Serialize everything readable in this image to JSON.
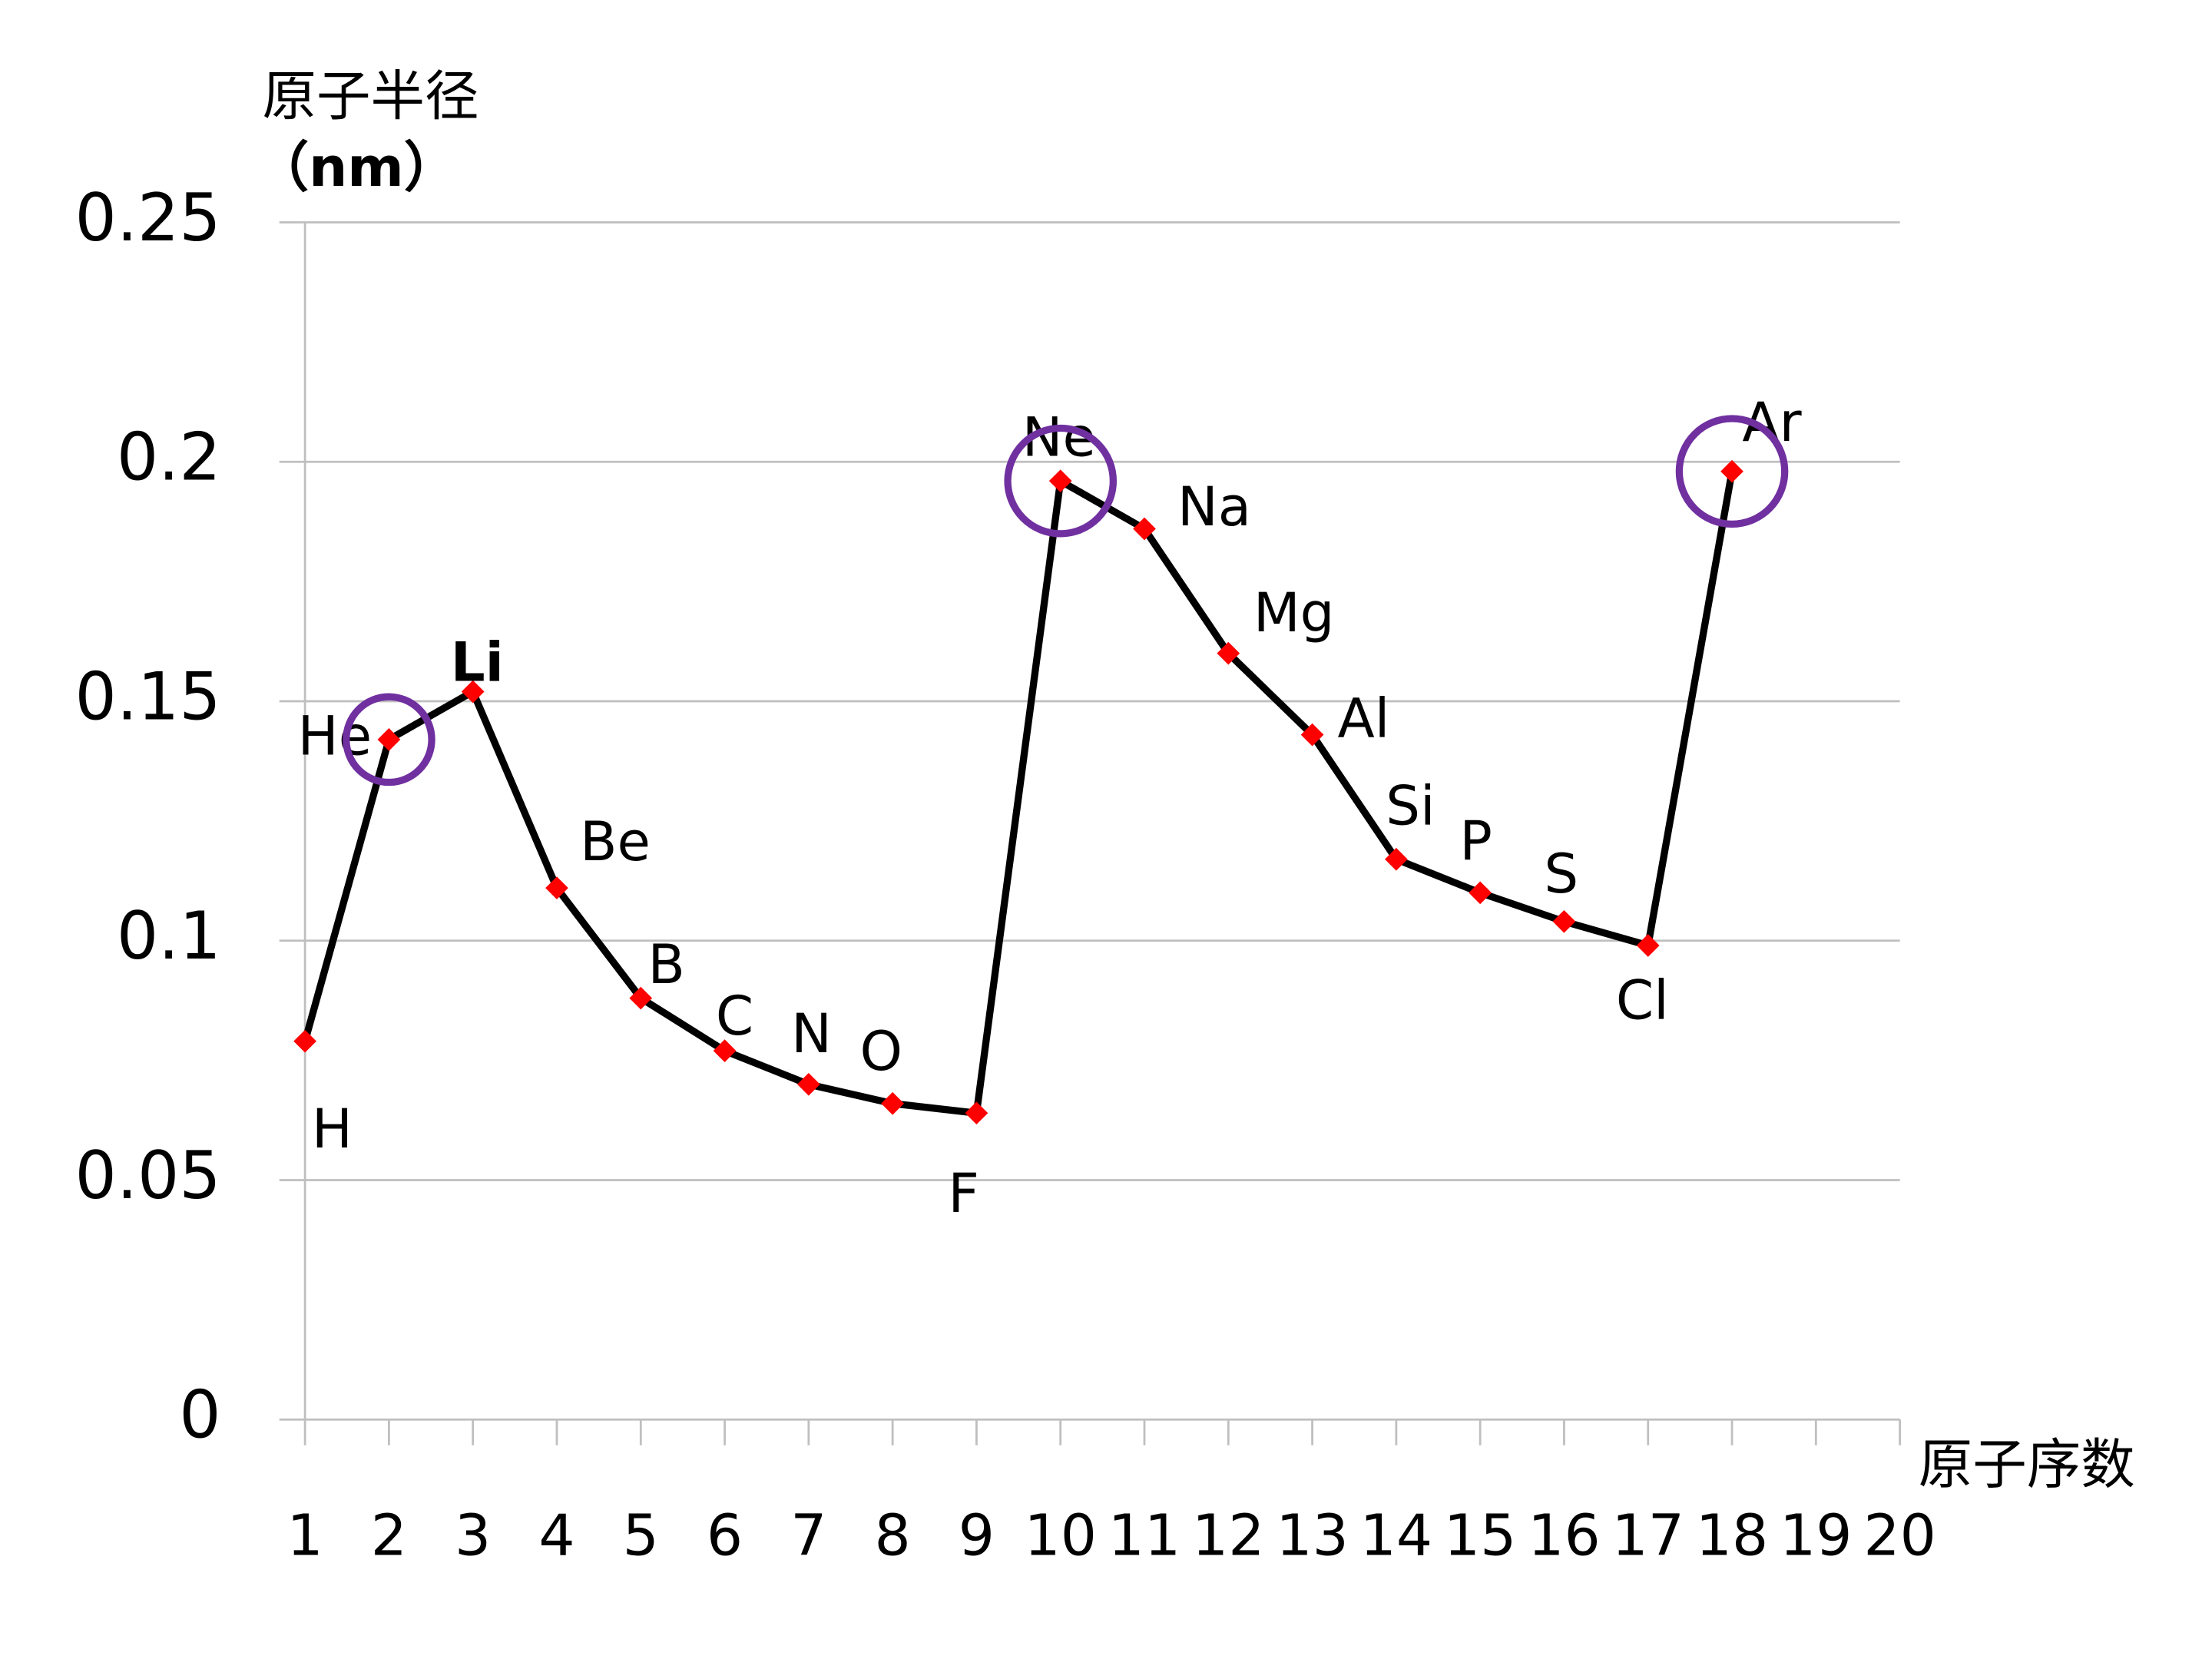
{
  "chart_data": {
    "type": "line",
    "y_label": [
      "原子半径",
      "（nm）"
    ],
    "x_label": "原子序数",
    "x": [
      1,
      2,
      3,
      4,
      5,
      6,
      7,
      8,
      9,
      10,
      11,
      12,
      13,
      14,
      15,
      16,
      17,
      18
    ],
    "series": [
      {
        "color": "#000000",
        "marker_color": "#ff0000",
        "values": [
          0.079,
          0.142,
          0.152,
          0.111,
          0.088,
          0.077,
          0.07,
          0.066,
          0.064,
          0.196,
          0.186,
          0.16,
          0.143,
          0.117,
          0.11,
          0.104,
          0.099,
          0.198
        ],
        "point_labels": [
          "H",
          "He",
          "Li",
          "Be",
          "B",
          "C",
          "N",
          "O",
          "F",
          "Ne",
          "Na",
          "Mg",
          "Al",
          "Si",
          "P",
          "S",
          "Cl",
          "Ar"
        ]
      }
    ],
    "xlim": [
      1,
      20
    ],
    "xticks": [
      1,
      2,
      3,
      4,
      5,
      6,
      7,
      8,
      9,
      10,
      11,
      12,
      13,
      14,
      15,
      16,
      17,
      18,
      19,
      20
    ],
    "ylim": [
      0,
      0.25
    ],
    "yticks": [
      0,
      0.05,
      0.1,
      0.15,
      0.2,
      0.25
    ],
    "grid": true,
    "highlight_color": "#7030a0"
  }
}
